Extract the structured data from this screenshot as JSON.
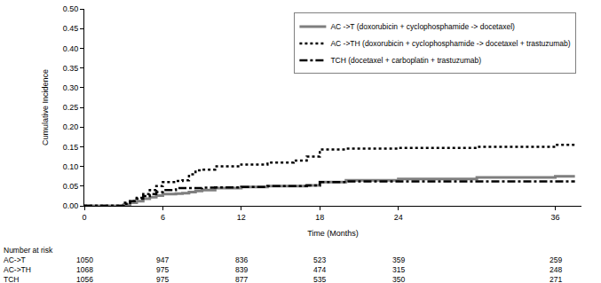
{
  "chart_data": {
    "type": "line",
    "x_label": "Time (Months)",
    "y_label": "Cumulative Incidence",
    "x": [
      0,
      2.5,
      3,
      3.5,
      4,
      4.5,
      5,
      5.5,
      6,
      7,
      7.5,
      8,
      8.5,
      9,
      10,
      12,
      14,
      16,
      17,
      18,
      20,
      24,
      30,
      36,
      37.5
    ],
    "series": [
      {
        "name": "AC ->T (doxorubicin + cyclophosphamide -> docetaxel)",
        "color": "#7f7f7f",
        "line_style": "solid",
        "values": [
          0,
          0,
          0.003,
          0.008,
          0.012,
          0.018,
          0.022,
          0.026,
          0.03,
          0.031,
          0.032,
          0.035,
          0.038,
          0.04,
          0.045,
          0.048,
          0.05,
          0.05,
          0.052,
          0.06,
          0.065,
          0.068,
          0.072,
          0.075,
          0.075
        ]
      },
      {
        "name": "AC ->TH (doxorubicin + cyclophosphamide -> docetaxel + trastuzumab)",
        "color": "#000000",
        "line_style": "dot",
        "values": [
          0,
          0,
          0.005,
          0.012,
          0.02,
          0.03,
          0.04,
          0.05,
          0.06,
          0.063,
          0.065,
          0.08,
          0.09,
          0.092,
          0.1,
          0.105,
          0.11,
          0.115,
          0.125,
          0.143,
          0.145,
          0.147,
          0.15,
          0.155,
          0.155
        ]
      },
      {
        "name": "TCH (docetaxel + carboplatin + trastuzumab)",
        "color": "#000000",
        "line_style": "dashdot",
        "values": [
          0,
          0,
          0.008,
          0.012,
          0.018,
          0.025,
          0.03,
          0.035,
          0.04,
          0.045,
          0.045,
          0.045,
          0.045,
          0.046,
          0.047,
          0.048,
          0.05,
          0.05,
          0.052,
          0.06,
          0.062,
          0.062,
          0.062,
          0.062,
          0.062
        ]
      }
    ],
    "xlim": [
      0,
      38
    ],
    "xticks": [
      0,
      6,
      12,
      18,
      24,
      36
    ],
    "ylim": [
      0,
      0.5
    ],
    "yticks": [
      {
        "value": 0,
        "label": "0.00"
      },
      {
        "value": 0.05,
        "label": "0.05"
      },
      {
        "value": 0.1,
        "label": "0.10"
      },
      {
        "value": 0.15,
        "label": "0.15"
      },
      {
        "value": 0.2,
        "label": "0.20"
      },
      {
        "value": 0.25,
        "label": "0.25"
      },
      {
        "value": 0.3,
        "label": "0.30"
      },
      {
        "value": 0.35,
        "label": "0.35"
      },
      {
        "value": 0.4,
        "label": "0.40"
      },
      {
        "value": 0.45,
        "label": "0.45"
      },
      {
        "value": 0.5,
        "label": "0.50"
      }
    ],
    "grid": false,
    "legend": "upper right",
    "number_at_risk": {
      "title": "Number at risk",
      "times": [
        0,
        6,
        12,
        18,
        24,
        36
      ],
      "rows": [
        {
          "name": "AC->T",
          "values": [
            1050,
            947,
            836,
            523,
            359,
            259
          ]
        },
        {
          "name": "AC->TH",
          "values": [
            1068,
            975,
            839,
            474,
            315,
            248
          ]
        },
        {
          "name": "TCH",
          "values": [
            1056,
            975,
            877,
            535,
            350,
            271
          ]
        }
      ]
    }
  }
}
